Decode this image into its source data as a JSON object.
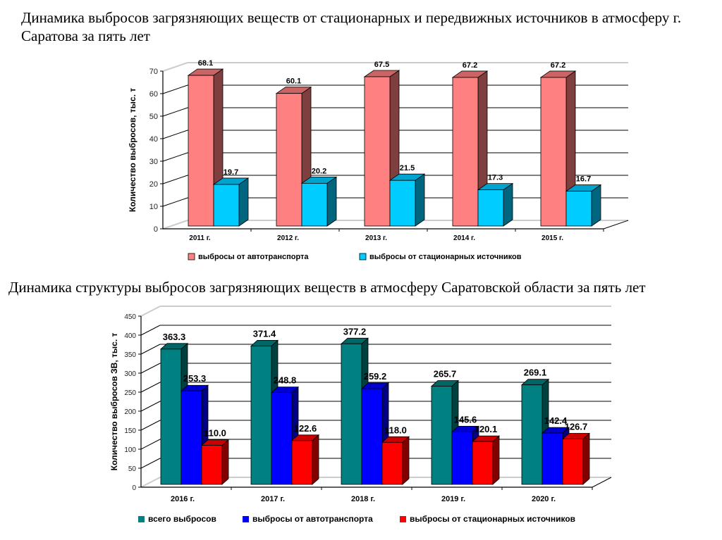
{
  "page": {
    "title1": "Динамика выбросов загрязняющих веществ от стационарных и передвижных источников в атмосферу г. Саратова за пять лет",
    "title2": "Динамика структуры выбросов загрязняющих веществ в атмосферу Саратовской области за пять лет"
  },
  "chart_data": [
    {
      "type": "bar",
      "style": "3d-clustered",
      "title": "Динамика выбросов загрязняющих веществ от стационарных и передвижных источников в атмосферу г. Саратова за пять лет",
      "xlabel": "",
      "ylabel": "Количество выбросов, тыс. т",
      "ylim": [
        0,
        70
      ],
      "yticks": [
        0,
        10,
        20,
        30,
        40,
        50,
        60,
        70
      ],
      "grid": true,
      "legend": "bottom",
      "categories": [
        "2011 г.",
        "2012 г.",
        "2013 г.",
        "2014 г.",
        "2015 г."
      ],
      "series": [
        {
          "name": "выбросы от автотранспорта",
          "color": "#FF8080",
          "side_color": "#7F3F3F",
          "values": [
            68.1,
            60.1,
            67.5,
            67.2,
            67.2
          ]
        },
        {
          "name": "выбросы от стационарных источников",
          "color": "#00CCFF",
          "side_color": "#006680",
          "values": [
            19.7,
            20.2,
            21.5,
            17.3,
            16.7
          ]
        }
      ]
    },
    {
      "type": "bar",
      "style": "3d-clustered",
      "title": "Динамика структуры выбросов загрязняющих веществ в атмосферу Саратовской области за пять лет",
      "xlabel": "",
      "ylabel": "Количество выбросов ЗВ, тыс. т",
      "ylim": [
        0,
        450
      ],
      "yticks": [
        0,
        50,
        100,
        150,
        200,
        250,
        300,
        350,
        400,
        450
      ],
      "grid": true,
      "legend": "bottom",
      "categories": [
        "2016 г.",
        "2017 г.",
        "2018 г.",
        "2019 г.",
        "2020 г."
      ],
      "series": [
        {
          "name": "всего выбросов",
          "color": "#008080",
          "side_color": "#004040",
          "values": [
            363.3,
            371.4,
            377.2,
            265.7,
            269.1
          ]
        },
        {
          "name": "выбросы от автотранспорта",
          "color": "#0000FF",
          "side_color": "#000080",
          "values": [
            253.3,
            248.8,
            259.2,
            145.6,
            142.4
          ]
        },
        {
          "name": "выбросы от стационарных источников",
          "color": "#FF0000",
          "side_color": "#800000",
          "values": [
            110.0,
            122.6,
            118.0,
            120.1,
            126.7
          ]
        }
      ]
    }
  ]
}
